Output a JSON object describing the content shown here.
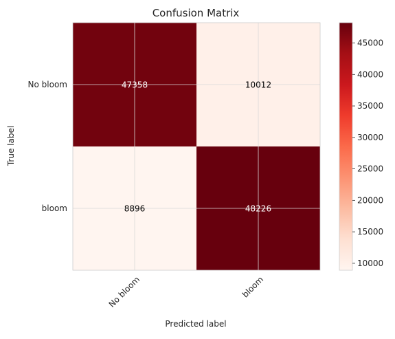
{
  "chart_data": {
    "type": "heatmap",
    "title": "Confusion Matrix",
    "xlabel": "Predicted label",
    "ylabel": "True label",
    "x_categories": [
      "No bloom",
      "bloom"
    ],
    "y_categories": [
      "No bloom",
      "bloom"
    ],
    "values": [
      [
        47358,
        10012
      ],
      [
        8896,
        48226
      ]
    ],
    "cell_labels": [
      [
        "47358",
        "10012"
      ],
      [
        "8896",
        "48226"
      ]
    ],
    "colormap": "Reds",
    "color_range": [
      8896,
      48226
    ],
    "colorbar_ticks": [
      10000,
      15000,
      20000,
      25000,
      30000,
      35000,
      40000,
      45000
    ],
    "colorbar_tick_labels": [
      "10000",
      "15000",
      "20000",
      "25000",
      "30000",
      "35000",
      "40000",
      "45000"
    ],
    "grid": true,
    "x_tick_rotation_deg": 45
  }
}
